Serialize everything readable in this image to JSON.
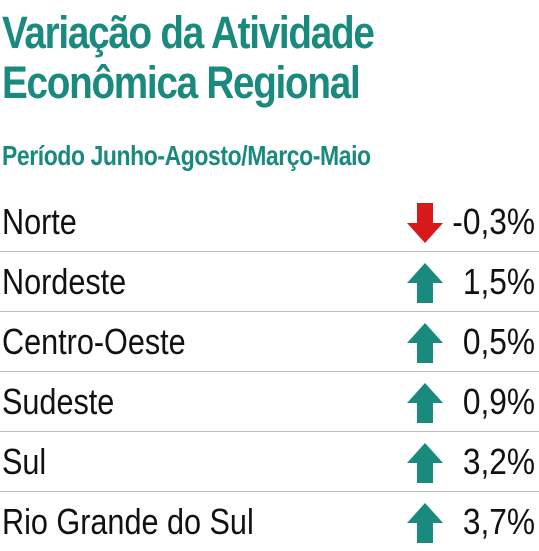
{
  "title_line1": "Variação da Atividade",
  "title_line2": "Econômica Regional",
  "subtitle": "Período Junho-Agosto/Março-Maio",
  "colors": {
    "accent": "#1a8a7e",
    "up": "#1a8a7e",
    "down": "#d7191c"
  },
  "chart_data": {
    "type": "table",
    "title": "Variação da Atividade Econômica Regional",
    "subtitle": "Período Junho-Agosto/Março-Maio",
    "categories": [
      "Norte",
      "Nordeste",
      "Centro-Oeste",
      "Sudeste",
      "Sul",
      "Rio Grande do Sul"
    ],
    "values": [
      -0.3,
      1.5,
      0.5,
      0.9,
      3.2,
      3.7
    ],
    "rows": [
      {
        "region": "Norte",
        "value": -0.3,
        "display": "-0,3%",
        "direction": "down"
      },
      {
        "region": "Nordeste",
        "value": 1.5,
        "display": "1,5%",
        "direction": "up"
      },
      {
        "region": "Centro-Oeste",
        "value": 0.5,
        "display": "0,5%",
        "direction": "up"
      },
      {
        "region": "Sudeste",
        "value": 0.9,
        "display": "0,9%",
        "direction": "up"
      },
      {
        "region": "Sul",
        "value": 3.2,
        "display": "3,2%",
        "direction": "up"
      },
      {
        "region": "Rio Grande do Sul",
        "value": 3.7,
        "display": "3,7%",
        "direction": "up"
      }
    ]
  }
}
